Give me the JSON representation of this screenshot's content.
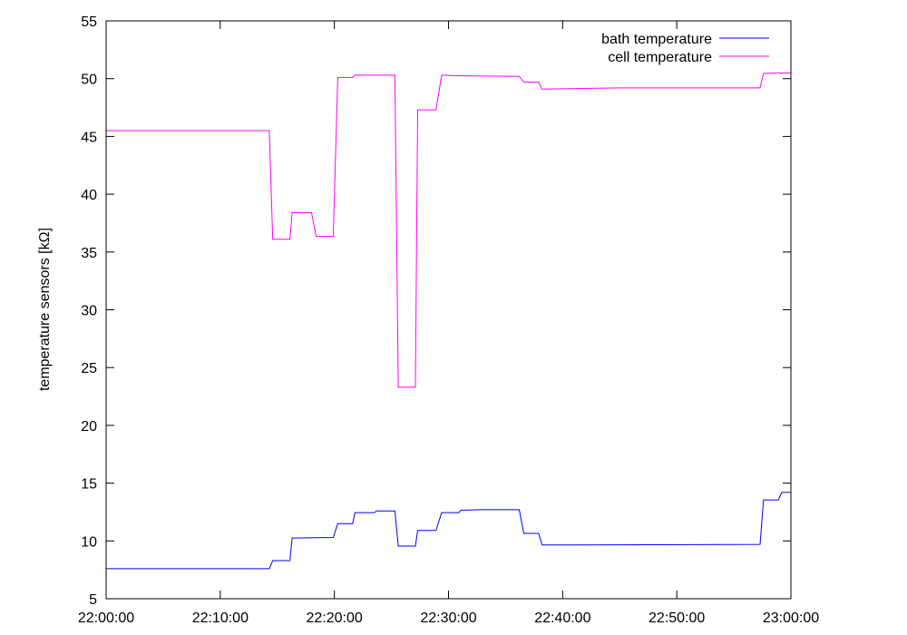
{
  "chart_data": {
    "type": "line",
    "title": "",
    "xlabel": "",
    "ylabel": "temperature sensors [kΩ]",
    "xlim": [
      "22:00:00",
      "23:00:00"
    ],
    "ylim": [
      5,
      55
    ],
    "x_ticks": [
      "22:00:00",
      "22:10:00",
      "22:20:00",
      "22:30:00",
      "22:40:00",
      "22:50:00",
      "23:00:00"
    ],
    "y_ticks": [
      5,
      10,
      15,
      20,
      25,
      30,
      35,
      40,
      45,
      50,
      55
    ],
    "grid": false,
    "legend_position": "top-right",
    "series": [
      {
        "name": "bath temperature",
        "color": "#0000ff",
        "points": [
          [
            "22:00:00",
            7.6
          ],
          [
            "22:14:18",
            7.6
          ],
          [
            "22:14:36",
            8.3
          ],
          [
            "22:16:06",
            8.3
          ],
          [
            "22:16:18",
            10.25
          ],
          [
            "22:19:54",
            10.3
          ],
          [
            "22:20:18",
            11.5
          ],
          [
            "22:21:36",
            11.5
          ],
          [
            "22:21:48",
            12.45
          ],
          [
            "22:23:30",
            12.45
          ],
          [
            "22:23:42",
            12.6
          ],
          [
            "22:25:18",
            12.6
          ],
          [
            "22:25:36",
            9.55
          ],
          [
            "22:27:06",
            9.55
          ],
          [
            "22:27:18",
            10.9
          ],
          [
            "22:28:54",
            10.9
          ],
          [
            "22:29:24",
            12.45
          ],
          [
            "22:30:54",
            12.45
          ],
          [
            "22:31:06",
            12.65
          ],
          [
            "22:32:48",
            12.7
          ],
          [
            "22:36:12",
            12.7
          ],
          [
            "22:36:36",
            10.65
          ],
          [
            "22:37:54",
            10.65
          ],
          [
            "22:38:12",
            9.65
          ],
          [
            "22:57:18",
            9.7
          ],
          [
            "22:57:36",
            13.55
          ],
          [
            "22:58:54",
            13.55
          ],
          [
            "22:59:12",
            14.2
          ],
          [
            "23:00:00",
            14.2
          ]
        ]
      },
      {
        "name": "cell temperature",
        "color": "#ff00ff",
        "points": [
          [
            "22:00:00",
            45.5
          ],
          [
            "22:14:18",
            45.5
          ],
          [
            "22:14:36",
            36.1
          ],
          [
            "22:16:06",
            36.1
          ],
          [
            "22:16:18",
            38.4
          ],
          [
            "22:18:00",
            38.4
          ],
          [
            "22:18:24",
            36.35
          ],
          [
            "22:19:54",
            36.35
          ],
          [
            "22:20:18",
            50.1
          ],
          [
            "22:21:36",
            50.1
          ],
          [
            "22:21:48",
            50.3
          ],
          [
            "22:25:18",
            50.3
          ],
          [
            "22:25:36",
            23.3
          ],
          [
            "22:27:06",
            23.3
          ],
          [
            "22:27:18",
            47.3
          ],
          [
            "22:28:54",
            47.3
          ],
          [
            "22:29:24",
            50.3
          ],
          [
            "22:31:00",
            50.25
          ],
          [
            "22:36:12",
            50.2
          ],
          [
            "22:36:36",
            49.7
          ],
          [
            "22:37:54",
            49.7
          ],
          [
            "22:38:12",
            49.1
          ],
          [
            "22:45:00",
            49.2
          ],
          [
            "22:57:18",
            49.2
          ],
          [
            "22:57:36",
            50.45
          ],
          [
            "23:00:00",
            50.5
          ]
        ]
      }
    ]
  }
}
